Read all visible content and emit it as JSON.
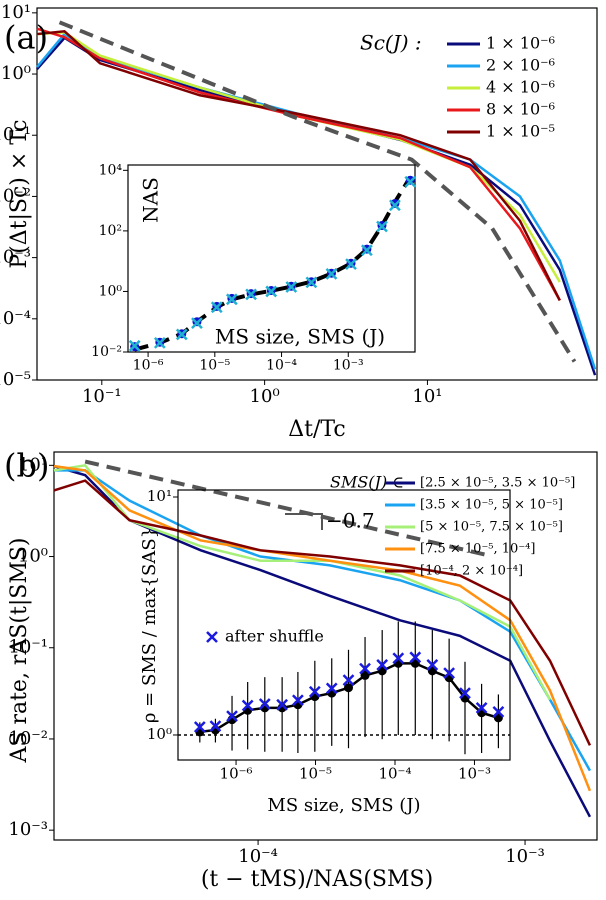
{
  "chart_data": [
    {
      "type": "line",
      "panel_label": "(a)",
      "xlabel": "Δt/Tc",
      "ylabel": "P(Δt|Sc) × Tc",
      "log_x": true,
      "log_y": true,
      "legend": "upper right",
      "legend_title": "Sc(J) :",
      "xlim": [
        0.04,
        110
      ],
      "ylim": [
        1e-05,
        12
      ],
      "xticks": [
        {
          "value": 0.1,
          "label": "10⁻¹"
        },
        {
          "value": 1,
          "label": "10⁰"
        },
        {
          "value": 10,
          "label": "10¹"
        }
      ],
      "yticks": [
        {
          "value": 1e-05,
          "label": "10⁻⁵"
        },
        {
          "value": 0.0001,
          "label": "10⁻⁴"
        },
        {
          "value": 0.001,
          "label": "10⁻³"
        },
        {
          "value": 0.01,
          "label": "10⁻²"
        },
        {
          "value": 0.1,
          "label": "10⁻¹"
        },
        {
          "value": 1,
          "label": "10⁰"
        },
        {
          "value": 10,
          "label": "10¹"
        }
      ],
      "x": [
        0.04,
        0.059,
        0.0975,
        0.4,
        1.65,
        6.8,
        18.3,
        37,
        65,
        107
      ],
      "series": [
        {
          "name": "1 × 10⁻⁶",
          "color": "#0a0a7a",
          "values": [
            1.2,
            3.9,
            1.7,
            0.55,
            0.21,
            0.084,
            0.033,
            0.0072,
            0.00063,
            1.2e-05
          ]
        },
        {
          "name": "2 × 10⁻⁶",
          "color": "#1aa3f0",
          "values": [
            1.3,
            4.5,
            1.9,
            0.6,
            0.22,
            0.09,
            0.04,
            0.01,
            0.0009,
            1.5e-05
          ]
        },
        {
          "name": "4 × 10⁻⁶",
          "color": "#c6ee3a",
          "values": [
            4.5,
            4.8,
            2.0,
            0.6,
            0.2,
            0.085,
            0.03,
            0.005,
            0.0004,
            null
          ]
        },
        {
          "name": "8 × 10⁻⁶",
          "color": "#e8181c",
          "values": [
            5.5,
            4.0,
            1.8,
            0.5,
            0.2,
            0.09,
            0.03,
            0.003,
            0.0002,
            null
          ]
        },
        {
          "name": "1 × 10⁻⁵",
          "color": "#800000",
          "values": [
            4.5,
            5.0,
            1.5,
            0.45,
            0.22,
            0.1,
            0.04,
            0.004,
            0.0002,
            null
          ]
        },
        {
          "color": "#555555",
          "dashed": true,
          "x": [
            0.055,
            1.5,
            8,
            25,
            80
          ],
          "values": [
            7,
            0.2,
            0.04,
            0.003,
            2e-05
          ]
        }
      ]
    },
    {
      "type": "scatter",
      "xlabel": "MS size, SMS (J)",
      "ylabel": "NAS",
      "log_x": true,
      "log_y": true,
      "xlim": [
        5e-07,
        0.01
      ],
      "ylim": [
        0.01,
        15000
      ],
      "xticks": [
        {
          "value": 1e-06,
          "label": "10⁻⁶"
        },
        {
          "value": 1e-05,
          "label": "10⁻⁵"
        },
        {
          "value": 0.0001,
          "label": "10⁻⁴"
        },
        {
          "value": 0.001,
          "label": "10⁻³"
        }
      ],
      "yticks": [
        {
          "value": 0.01,
          "label": "10⁻²"
        },
        {
          "value": 1,
          "label": "10⁰"
        },
        {
          "value": 100,
          "label": "10²"
        },
        {
          "value": 10000,
          "label": "10⁴"
        }
      ],
      "x": [
        6.3e-07,
        1.5e-06,
        3.2e-06,
        5.4e-06,
        1.07e-05,
        1.8e-05,
        3.5e-05,
        7e-05,
        0.00014,
        0.00028,
        0.00056,
        0.0011,
        0.0019,
        0.0032,
        0.005,
        0.0085
      ],
      "series": [
        {
          "color": "#000000",
          "dashed": true,
          "values": [
            0.012,
            0.02,
            0.04,
            0.1,
            0.3,
            0.55,
            0.8,
            1.05,
            1.45,
            2.1,
            3.9,
            8.5,
            25,
            150,
            900,
            6000
          ]
        },
        {
          "color": "#1010d0",
          "marker": "circle",
          "values": [
            0.015,
            0.021,
            0.04,
            0.1,
            0.32,
            0.59,
            0.85,
            1.07,
            1.48,
            2.1,
            4,
            8.5,
            25,
            150,
            800,
            4700
          ]
        },
        {
          "color": "#20b0d0",
          "marker": "x",
          "values": [
            0.016,
            0.02,
            0.038,
            0.09,
            0.3,
            0.55,
            0.8,
            1.0,
            1.4,
            2.0,
            3.8,
            8,
            23,
            140,
            700,
            4200
          ]
        }
      ]
    },
    {
      "type": "line",
      "panel_label": "(b)",
      "xlabel": "(t − tMS)/NAS(SMS)",
      "ylabel": "AS rate, rAS(t|SMS)",
      "log_x": true,
      "log_y": true,
      "legend": "upper right",
      "legend_title": "SMS(J) ∈",
      "annotation": "−0.7",
      "xlim": [
        1.72e-05,
        0.00186
      ],
      "ylim": [
        0.00078,
        14
      ],
      "xticks": [
        {
          "value": 0.0001,
          "label": "10⁻⁴"
        },
        {
          "value": 0.001,
          "label": "10⁻³"
        }
      ],
      "yticks": [
        {
          "value": 0.001,
          "label": "10⁻³"
        },
        {
          "value": 0.01,
          "label": "10⁻²"
        },
        {
          "value": 0.1,
          "label": "10⁻¹"
        },
        {
          "value": 1,
          "label": "10⁰"
        },
        {
          "value": 10,
          "label": "10¹"
        }
      ],
      "x": [
        1.72e-05,
        2.25e-05,
        3.3e-05,
        6.1e-05,
        0.000102,
        0.000186,
        0.00034,
        0.00057,
        0.00088,
        0.00124,
        0.00175
      ],
      "series": [
        {
          "name": "[2.5 × 10⁻⁵, 3.5 × 10⁻⁵]",
          "color": "#0a0a7a",
          "values": [
            9.8,
            7.8,
            2.5,
            1.17,
            0.71,
            0.37,
            0.2,
            0.135,
            0.072,
            0.0095,
            0.0014
          ]
        },
        {
          "name": "[3.5 × 10⁻⁵, 5 × 10⁻⁵]",
          "color": "#1aa3f0",
          "values": [
            8.8,
            8.8,
            4.1,
            1.7,
            1.0,
            0.8,
            0.55,
            0.33,
            0.15,
            0.027,
            0.0045
          ]
        },
        {
          "name": "[5 × 10⁻⁵, 7.5 × 10⁻⁵]",
          "color": "#a6f07a",
          "values": [
            8.8,
            10,
            2.5,
            1.3,
            0.9,
            0.9,
            0.62,
            0.33,
            0.17,
            0.027,
            null
          ]
        },
        {
          "name": "[7.5 × 10⁻⁵, 10⁻⁴]",
          "color": "#ff9010",
          "values": [
            9.8,
            8.8,
            3.2,
            1.5,
            1.17,
            0.9,
            0.7,
            0.48,
            0.2,
            0.034,
            0.0027
          ]
        },
        {
          "name": "[10⁻⁴, 2 × 10⁻⁴]",
          "color": "#800000",
          "values": [
            5.3,
            6.8,
            2.5,
            1.7,
            1.17,
            1.0,
            0.8,
            0.62,
            0.33,
            0.072,
            0.0085
          ]
        },
        {
          "color": "#555555",
          "dashed": true,
          "x": [
            2.25e-05,
            0.00074
          ],
          "values": [
            11,
            1.02
          ]
        }
      ]
    },
    {
      "type": "scatter",
      "xlabel": "MS size, SMS (J)",
      "ylabel": "ρ = SMS / max{SAS}",
      "log_x": true,
      "log_y": true,
      "legend": "upper left",
      "hline": 1,
      "xlim": [
        1.86e-07,
        0.0028
      ],
      "ylim": [
        0.785,
        10.7
      ],
      "xticks": [
        {
          "value": 1e-06,
          "label": "10⁻⁶"
        },
        {
          "value": 1e-05,
          "label": "10⁻⁵"
        },
        {
          "value": 0.0001,
          "label": "10⁻⁴"
        },
        {
          "value": 0.001,
          "label": "10⁻³"
        }
      ],
      "yticks": [
        {
          "value": 1,
          "label": "10⁰"
        },
        {
          "value": 10,
          "label": "10¹"
        }
      ],
      "x": [
        3.5e-07,
        5.5e-07,
        8.9e-07,
        1.4e-06,
        2.3e-06,
        3.8e-06,
        6e-06,
        9.8e-06,
        1.6e-05,
        2.6e-05,
        4.2e-05,
        6.9e-05,
        0.00011,
        0.00018,
        0.000295,
        0.00048,
        0.00076,
        0.00123,
        0.002
      ],
      "series": [
        {
          "color": "#000000",
          "marker": "circle",
          "line": true,
          "values": [
            1.03,
            1.05,
            1.16,
            1.27,
            1.3,
            1.3,
            1.34,
            1.45,
            1.5,
            1.58,
            1.78,
            1.86,
            2.0,
            2.0,
            1.86,
            1.74,
            1.43,
            1.24,
            1.18
          ],
          "errors": [
            0.1,
            0.12,
            0.3,
            0.4,
            0.45,
            0.45,
            0.5,
            0.6,
            0.6,
            0.7,
            0.8,
            0.9,
            1.0,
            1.0,
            0.9,
            0.8,
            0.6,
            0.4,
            0.3
          ]
        },
        {
          "name": "after shuffle",
          "color": "#1a1ae0",
          "marker": "x",
          "values": [
            1.08,
            1.09,
            1.2,
            1.33,
            1.35,
            1.34,
            1.4,
            1.52,
            1.57,
            1.7,
            1.9,
            1.97,
            2.1,
            2.12,
            1.97,
            1.82,
            1.5,
            1.3,
            1.25
          ]
        }
      ]
    }
  ]
}
